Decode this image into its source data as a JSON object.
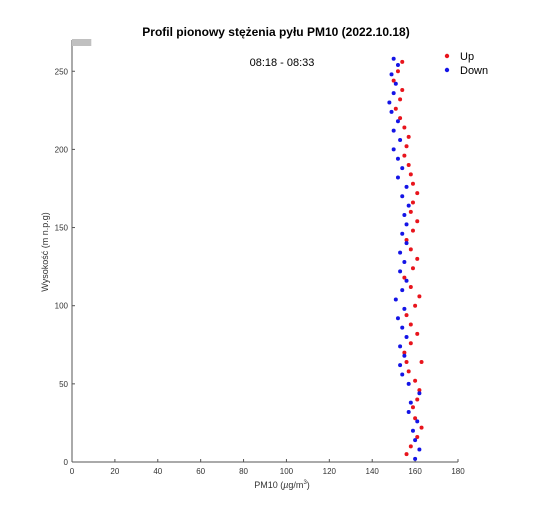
{
  "chart_data": {
    "type": "scatter",
    "title": "Profil pionowy stężenia pyłu PM10 (2022.10.18)",
    "xlabel": "PM10 (µg/m³)",
    "xlabel_parts": {
      "prefix": "PM10 (",
      "mu": "µ",
      "unit": "g/m",
      "exp": "3",
      "suffix": ")"
    },
    "ylabel": "Wysokość (m n.p.g)",
    "annotation": "08:18 - 08:33",
    "xlim": [
      0,
      180
    ],
    "ylim": [
      0,
      270
    ],
    "xticks": [
      0,
      20,
      40,
      60,
      80,
      100,
      120,
      140,
      160,
      180
    ],
    "yticks": [
      0,
      50,
      100,
      150,
      200,
      250
    ],
    "grid": false,
    "legend_position": "top-right",
    "colors": {
      "up": "#e8141c",
      "down": "#1414e6",
      "gray_marker": "#c0c0c0"
    },
    "series": [
      {
        "name": "Up",
        "points": [
          [
            156,
            5
          ],
          [
            158,
            10
          ],
          [
            161,
            16
          ],
          [
            163,
            22
          ],
          [
            160,
            28
          ],
          [
            159,
            35
          ],
          [
            161,
            40
          ],
          [
            162,
            46
          ],
          [
            160,
            52
          ],
          [
            157,
            58
          ],
          [
            156,
            64
          ],
          [
            163,
            64
          ],
          [
            155,
            70
          ],
          [
            158,
            76
          ],
          [
            161,
            82
          ],
          [
            158,
            88
          ],
          [
            156,
            94
          ],
          [
            160,
            100
          ],
          [
            162,
            106
          ],
          [
            158,
            112
          ],
          [
            155,
            118
          ],
          [
            159,
            124
          ],
          [
            161,
            130
          ],
          [
            158,
            136
          ],
          [
            156,
            142
          ],
          [
            159,
            148
          ],
          [
            161,
            154
          ],
          [
            158,
            160
          ],
          [
            159,
            166
          ],
          [
            161,
            172
          ],
          [
            159,
            178
          ],
          [
            158,
            184
          ],
          [
            157,
            190
          ],
          [
            155,
            196
          ],
          [
            156,
            202
          ],
          [
            157,
            208
          ],
          [
            155,
            214
          ],
          [
            153,
            220
          ],
          [
            151,
            226
          ],
          [
            153,
            232
          ],
          [
            154,
            238
          ],
          [
            150,
            244
          ],
          [
            152,
            250
          ],
          [
            154,
            256
          ]
        ]
      },
      {
        "name": "Down",
        "points": [
          [
            160,
            2
          ],
          [
            162,
            8
          ],
          [
            160,
            14
          ],
          [
            159,
            20
          ],
          [
            161,
            26
          ],
          [
            157,
            32
          ],
          [
            158,
            38
          ],
          [
            162,
            44
          ],
          [
            157,
            50
          ],
          [
            154,
            56
          ],
          [
            153,
            62
          ],
          [
            155,
            68
          ],
          [
            153,
            74
          ],
          [
            156,
            80
          ],
          [
            154,
            86
          ],
          [
            152,
            92
          ],
          [
            155,
            98
          ],
          [
            151,
            104
          ],
          [
            154,
            110
          ],
          [
            156,
            116
          ],
          [
            153,
            122
          ],
          [
            155,
            128
          ],
          [
            153,
            134
          ],
          [
            156,
            140
          ],
          [
            154,
            146
          ],
          [
            156,
            152
          ],
          [
            155,
            158
          ],
          [
            157,
            164
          ],
          [
            154,
            170
          ],
          [
            156,
            176
          ],
          [
            152,
            182
          ],
          [
            154,
            188
          ],
          [
            152,
            194
          ],
          [
            150,
            200
          ],
          [
            153,
            206
          ],
          [
            150,
            212
          ],
          [
            152,
            218
          ],
          [
            149,
            224
          ],
          [
            148,
            230
          ],
          [
            150,
            236
          ],
          [
            151,
            242
          ],
          [
            149,
            248
          ],
          [
            152,
            254
          ],
          [
            150,
            258
          ]
        ]
      }
    ]
  }
}
